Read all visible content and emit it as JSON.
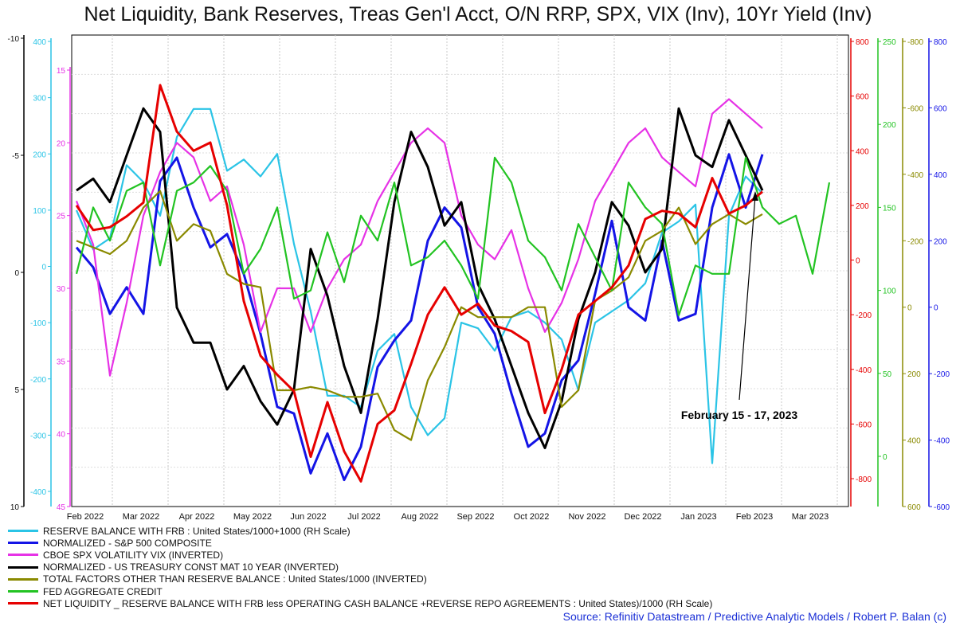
{
  "title": "Net Liquidity, Bank Reserves, Treas Gen'l Acct, O/N RRP, SPX, VIX (Inv), 10Yr Yield (Inv)",
  "source": "Source: Refinitiv Datastream / Predictive Analytic Models / Robert P. Balan (c)",
  "chart_data": {
    "type": "line",
    "x_axis": {
      "labels": [
        "Feb 2022",
        "Mar 2022",
        "Apr 2022",
        "May 2022",
        "Jun 2022",
        "Jul 2022",
        "Aug 2022",
        "Sep 2022",
        "Oct 2022",
        "Nov 2022",
        "Dec 2022",
        "Jan 2023",
        "Feb 2023",
        "Mar 2023"
      ]
    },
    "axes": {
      "left_outer": {
        "color": "#000000",
        "ticks": [
          "-10",
          "-5",
          "0",
          "5",
          "10"
        ]
      },
      "left_cyan": {
        "color": "#2bc4e6",
        "ticks": [
          "400",
          "300",
          "200",
          "100",
          "0",
          "-100",
          "-200",
          "-300",
          "-400"
        ]
      },
      "left_magenta": {
        "color": "#e632e6",
        "ticks": [
          "15",
          "20",
          "25",
          "30",
          "35",
          "40",
          "45"
        ]
      },
      "right_red": {
        "color": "#e60000",
        "ticks": [
          "800",
          "600",
          "400",
          "200",
          "0",
          "-200",
          "-400",
          "-600",
          "-800"
        ]
      },
      "right_green": {
        "color": "#22c322",
        "ticks": [
          "250",
          "200",
          "150",
          "100",
          "50",
          "0"
        ]
      },
      "right_olive": {
        "color": "#8a8a00",
        "ticks": [
          "-800",
          "-600",
          "-400",
          "-200",
          "0",
          "200",
          "400",
          "600"
        ]
      },
      "right_blue": {
        "color": "#1414e6",
        "ticks": [
          "800",
          "600",
          "400",
          "200",
          "0",
          "-200",
          "-400",
          "-600"
        ]
      }
    },
    "annotation": {
      "text": "February 15 - 17, 2023"
    },
    "series": [
      {
        "name": "RESERVE BALANCE WITH FRB : United States/1000+1000 (RH Scale)",
        "color": "#2bc4e6",
        "axis": "left_cyan",
        "x": [
          0,
          0.3,
          0.6,
          0.9,
          1.2,
          1.5,
          1.8,
          2.1,
          2.4,
          2.7,
          3.0,
          3.3,
          3.6,
          3.9,
          4.2,
          4.5,
          4.8,
          5.1,
          5.4,
          5.7,
          6.0,
          6.3,
          6.6,
          6.9,
          7.2,
          7.5,
          7.8,
          8.1,
          8.4,
          8.7,
          9.0,
          9.3,
          9.6,
          9.9,
          10.2,
          10.5,
          10.8,
          11.1,
          11.4,
          11.7,
          12.0,
          12.3
        ],
        "y": [
          100,
          30,
          50,
          180,
          150,
          90,
          230,
          280,
          280,
          170,
          190,
          160,
          200,
          40,
          -80,
          -230,
          -230,
          -250,
          -150,
          -120,
          -250,
          -300,
          -270,
          -100,
          -110,
          -150,
          -90,
          -80,
          -100,
          -130,
          -220,
          -100,
          -80,
          -60,
          -30,
          60,
          80,
          110,
          -350,
          90,
          160,
          130
        ]
      },
      {
        "name": "NORMALIZED - S&P 500 COMPOSITE",
        "color": "#1414e6",
        "axis": "right_blue",
        "x": [
          0,
          0.3,
          0.6,
          0.9,
          1.2,
          1.5,
          1.8,
          2.1,
          2.4,
          2.7,
          3.0,
          3.3,
          3.6,
          3.9,
          4.2,
          4.5,
          4.8,
          5.1,
          5.4,
          5.7,
          6.0,
          6.3,
          6.6,
          6.9,
          7.2,
          7.5,
          7.8,
          8.1,
          8.4,
          8.7,
          9.0,
          9.3,
          9.6,
          9.9,
          10.2,
          10.5,
          10.8,
          11.1,
          11.4,
          11.7,
          12.0,
          12.3
        ],
        "y": [
          180,
          120,
          -20,
          60,
          -20,
          380,
          450,
          300,
          180,
          220,
          100,
          -80,
          -300,
          -320,
          -500,
          -380,
          -520,
          -420,
          -180,
          -100,
          -40,
          200,
          300,
          240,
          0,
          -80,
          -260,
          -420,
          -380,
          -220,
          -160,
          40,
          260,
          0,
          -40,
          200,
          -40,
          -20,
          300,
          460,
          300,
          460
        ]
      },
      {
        "name": "CBOE SPX VOLATILITY VIX (INVERTED)",
        "color": "#e632e6",
        "axis": "left_magenta",
        "x": [
          0,
          0.3,
          0.6,
          0.9,
          1.2,
          1.5,
          1.8,
          2.1,
          2.4,
          2.7,
          3.0,
          3.3,
          3.6,
          3.9,
          4.2,
          4.5,
          4.8,
          5.1,
          5.4,
          5.7,
          6.0,
          6.3,
          6.6,
          6.9,
          7.2,
          7.5,
          7.8,
          8.1,
          8.4,
          8.7,
          9.0,
          9.3,
          9.6,
          9.9,
          10.2,
          10.5,
          10.8,
          11.1,
          11.4,
          11.7,
          12.0,
          12.3
        ],
        "y": [
          24,
          27,
          36,
          31,
          25,
          22,
          20,
          21,
          24,
          23,
          27,
          33,
          30,
          30,
          33,
          30,
          28,
          27,
          24,
          22,
          20,
          19,
          20,
          25,
          27,
          28,
          26,
          30,
          33,
          31,
          28,
          24,
          22,
          20,
          19,
          21,
          22,
          23,
          18,
          17,
          18,
          19
        ]
      },
      {
        "name": "NORMALIZED - US TREASURY CONST MAT 10 YEAR (INVERTED)",
        "color": "#000000",
        "axis": "left_outer",
        "x": [
          0,
          0.3,
          0.6,
          0.9,
          1.2,
          1.5,
          1.8,
          2.1,
          2.4,
          2.7,
          3.0,
          3.3,
          3.6,
          3.9,
          4.2,
          4.5,
          4.8,
          5.1,
          5.4,
          5.7,
          6.0,
          6.3,
          6.6,
          6.9,
          7.2,
          7.5,
          7.8,
          8.1,
          8.4,
          8.7,
          9.0,
          9.3,
          9.6,
          9.9,
          10.2,
          10.5,
          10.8,
          11.1,
          11.4,
          11.7,
          12.0,
          12.3
        ],
        "y": [
          -3.5,
          -4,
          -3,
          -5,
          -7,
          -6,
          1.5,
          3,
          3,
          5,
          4,
          5.5,
          6.5,
          5,
          -1,
          1,
          4,
          6,
          2,
          -3,
          -6,
          -4.5,
          -2,
          -3,
          0.5,
          2,
          4,
          6,
          7.5,
          5.5,
          2,
          0,
          -3,
          -2,
          0,
          -1,
          -7,
          -5,
          -4.5,
          -6.5,
          -5,
          -3.5
        ]
      },
      {
        "name": "TOTAL FACTORS OTHER THAN RESERVE BALANCE : United States/1000 (INVERTED)",
        "color": "#8a8a00",
        "axis": "right_olive",
        "x": [
          0,
          0.3,
          0.6,
          0.9,
          1.2,
          1.5,
          1.8,
          2.1,
          2.4,
          2.7,
          3.0,
          3.3,
          3.6,
          3.9,
          4.2,
          4.5,
          4.8,
          5.1,
          5.4,
          5.7,
          6.0,
          6.3,
          6.6,
          6.9,
          7.2,
          7.5,
          7.8,
          8.1,
          8.4,
          8.7,
          9.0,
          9.3,
          9.6,
          9.9,
          10.2,
          10.5,
          10.8,
          11.1,
          11.4,
          11.7,
          12.0,
          12.3
        ],
        "y": [
          -200,
          -180,
          -160,
          -200,
          -300,
          -350,
          -200,
          -250,
          -230,
          -100,
          -70,
          -60,
          250,
          250,
          240,
          250,
          270,
          270,
          260,
          370,
          400,
          220,
          120,
          0,
          30,
          30,
          30,
          0,
          0,
          300,
          250,
          -20,
          -50,
          -90,
          -200,
          -230,
          -300,
          -190,
          -250,
          -280,
          -250,
          -280
        ]
      },
      {
        "name": "FED AGGREGATE CREDIT",
        "color": "#22c322",
        "axis": "right_green",
        "x": [
          0,
          0.3,
          0.6,
          0.9,
          1.2,
          1.5,
          1.8,
          2.1,
          2.4,
          2.7,
          3.0,
          3.3,
          3.6,
          3.9,
          4.2,
          4.5,
          4.8,
          5.1,
          5.4,
          5.7,
          6.0,
          6.3,
          6.6,
          6.9,
          7.2,
          7.5,
          7.8,
          8.1,
          8.4,
          8.7,
          9.0,
          9.3,
          9.6,
          9.9,
          10.2,
          10.5,
          10.8,
          11.1,
          11.4,
          11.7,
          12.0,
          12.3,
          12.6,
          12.9,
          13.2,
          13.5
        ],
        "y": [
          110,
          150,
          130,
          160,
          165,
          115,
          160,
          165,
          175,
          160,
          110,
          125,
          150,
          95,
          100,
          135,
          105,
          145,
          130,
          165,
          115,
          120,
          130,
          115,
          95,
          180,
          165,
          130,
          120,
          100,
          140,
          120,
          100,
          165,
          150,
          140,
          85,
          115,
          110,
          110,
          180,
          150,
          140,
          145,
          110,
          165
        ]
      },
      {
        "name": "NET LIQUIDITY _ RESERVE BALANCE WITH FRB less OPERATING CASH BALANCE +REVERSE REPO AGREEMENTS : United States)/1000 (RH Scale)",
        "color": "#e60000",
        "axis": "right_red",
        "x": [
          0,
          0.3,
          0.6,
          0.9,
          1.2,
          1.5,
          1.8,
          2.1,
          2.4,
          2.7,
          3.0,
          3.3,
          3.6,
          3.9,
          4.2,
          4.5,
          4.8,
          5.1,
          5.4,
          5.7,
          6.0,
          6.3,
          6.6,
          6.9,
          7.2,
          7.5,
          7.8,
          8.1,
          8.4,
          8.7,
          9.0,
          9.3,
          9.6,
          9.9,
          10.2,
          10.5,
          10.8,
          11.1,
          11.4,
          11.7,
          12.0,
          12.3
        ],
        "y": [
          200,
          110,
          120,
          160,
          210,
          640,
          470,
          400,
          430,
          200,
          -150,
          -350,
          -420,
          -480,
          -720,
          -520,
          -700,
          -810,
          -600,
          -550,
          -380,
          -200,
          -100,
          -200,
          -160,
          -240,
          -260,
          -300,
          -560,
          -400,
          -200,
          -150,
          -100,
          -20,
          150,
          180,
          170,
          120,
          300,
          170,
          200,
          250
        ]
      }
    ]
  }
}
